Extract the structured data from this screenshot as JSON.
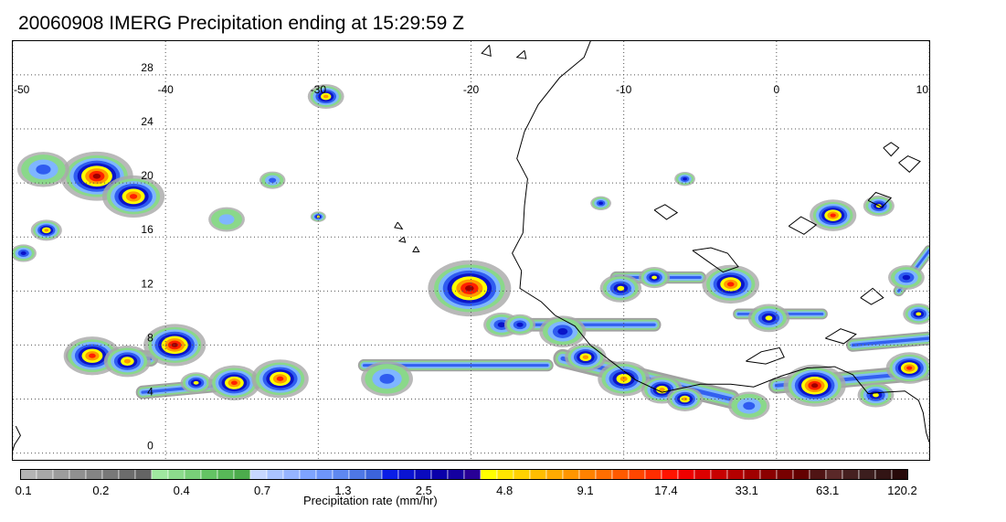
{
  "title": "20060908 IMERG Precipitation ending at 15:29:59 Z",
  "map": {
    "lon_range": [
      -50,
      10
    ],
    "lat_range": [
      -0.5,
      30.5
    ],
    "lon_ticks": [
      -50,
      -40,
      -30,
      -20,
      -10,
      0,
      10
    ],
    "lon_tick_labels": [
      "-50",
      "-40",
      "-30",
      "-20",
      "-10",
      "0",
      "10"
    ],
    "lat_ticks": [
      0,
      4,
      8,
      12,
      16,
      20,
      24,
      28
    ],
    "lat_tick_labels": [
      "0",
      "4",
      "8",
      "12",
      "16",
      "20",
      "24",
      "28"
    ],
    "gridlines": true,
    "cells": [
      {
        "lon": -44.5,
        "lat": 20.5,
        "r": 1.4,
        "level": 0.95
      },
      {
        "lon": -42.1,
        "lat": 19.0,
        "r": 1.2,
        "level": 0.85
      },
      {
        "lon": -47.8,
        "lat": 16.5,
        "r": 0.6,
        "level": 0.7
      },
      {
        "lon": -49.3,
        "lat": 14.8,
        "r": 0.5,
        "level": 0.5
      },
      {
        "lon": -48.0,
        "lat": 21.0,
        "r": 1.0,
        "level": 0.35
      },
      {
        "lon": -29.5,
        "lat": 26.4,
        "r": 0.7,
        "level": 0.75
      },
      {
        "lon": -44.8,
        "lat": 7.2,
        "r": 1.1,
        "level": 0.85
      },
      {
        "lon": -42.5,
        "lat": 6.8,
        "r": 0.9,
        "level": 0.8
      },
      {
        "lon": -39.4,
        "lat": 8.0,
        "r": 1.2,
        "level": 1.0
      },
      {
        "lon": -38.0,
        "lat": 5.2,
        "r": 0.6,
        "level": 0.6
      },
      {
        "lon": -35.5,
        "lat": 5.2,
        "r": 1.0,
        "level": 0.9
      },
      {
        "lon": -32.5,
        "lat": 5.5,
        "r": 1.1,
        "level": 0.9
      },
      {
        "lon": -20.1,
        "lat": 12.2,
        "r": 1.6,
        "level": 1.0
      },
      {
        "lon": -18.0,
        "lat": 9.5,
        "r": 0.7,
        "level": 0.55
      },
      {
        "lon": -16.8,
        "lat": 9.5,
        "r": 0.6,
        "level": 0.5
      },
      {
        "lon": -10.2,
        "lat": 12.2,
        "r": 0.8,
        "level": 0.65
      },
      {
        "lon": -8.0,
        "lat": 13.0,
        "r": 0.6,
        "level": 0.6
      },
      {
        "lon": -12.5,
        "lat": 7.1,
        "r": 0.8,
        "level": 0.7
      },
      {
        "lon": -10.0,
        "lat": 5.5,
        "r": 1.0,
        "level": 0.75
      },
      {
        "lon": -7.5,
        "lat": 4.7,
        "r": 0.8,
        "level": 0.7
      },
      {
        "lon": -6.0,
        "lat": 4.0,
        "r": 0.7,
        "level": 0.75
      },
      {
        "lon": -3.0,
        "lat": 12.5,
        "r": 1.1,
        "level": 0.85
      },
      {
        "lon": -0.5,
        "lat": 10.0,
        "r": 0.8,
        "level": 0.65
      },
      {
        "lon": 3.7,
        "lat": 17.6,
        "r": 0.9,
        "level": 0.9
      },
      {
        "lon": 6.7,
        "lat": 18.3,
        "r": 0.6,
        "level": 0.6
      },
      {
        "lon": 2.5,
        "lat": 5.0,
        "r": 1.2,
        "level": 0.95
      },
      {
        "lon": 6.5,
        "lat": 4.3,
        "r": 0.7,
        "level": 0.6
      },
      {
        "lon": 8.7,
        "lat": 6.3,
        "r": 0.9,
        "level": 0.85
      },
      {
        "lon": 9.3,
        "lat": 10.3,
        "r": 0.6,
        "level": 0.6
      },
      {
        "lon": 8.5,
        "lat": 13.0,
        "r": 0.7,
        "level": 0.55
      },
      {
        "lon": -25.5,
        "lat": 5.5,
        "r": 1.0,
        "level": 0.35
      },
      {
        "lon": -14.0,
        "lat": 9.0,
        "r": 0.9,
        "level": 0.45
      },
      {
        "lon": -1.8,
        "lat": 3.5,
        "r": 0.8,
        "level": 0.4
      },
      {
        "lon": -6.0,
        "lat": 20.3,
        "r": 0.4,
        "level": 0.55
      },
      {
        "lon": -11.5,
        "lat": 18.5,
        "r": 0.4,
        "level": 0.55
      },
      {
        "lon": -33.0,
        "lat": 20.2,
        "r": 0.5,
        "level": 0.35
      },
      {
        "lon": -36.0,
        "lat": 17.3,
        "r": 0.7,
        "level": 0.3
      },
      {
        "lon": -30.0,
        "lat": 17.5,
        "r": 0.3,
        "level": 0.6
      }
    ],
    "bands": [
      {
        "lon1": -27.0,
        "lat1": 6.5,
        "lon2": -15.0,
        "lat2": 6.5,
        "w": 0.45
      },
      {
        "lon1": -16.0,
        "lat1": 9.5,
        "lon2": -8.0,
        "lat2": 9.5,
        "w": 0.5
      },
      {
        "lon1": -14.0,
        "lat1": 7.0,
        "lon2": -3.0,
        "lat2": 4.0,
        "w": 0.7
      },
      {
        "lon1": -2.5,
        "lat1": 10.3,
        "lon2": 3.0,
        "lat2": 10.3,
        "w": 0.4
      },
      {
        "lon1": -10.5,
        "lat1": 13.0,
        "lon2": -5.0,
        "lat2": 13.0,
        "w": 0.45
      },
      {
        "lon1": 0.0,
        "lat1": 5.0,
        "lon2": 10.0,
        "lat2": 6.0,
        "w": 0.6
      },
      {
        "lon1": -46.0,
        "lat1": 7.2,
        "lon2": -41.0,
        "lat2": 7.0,
        "w": 0.6
      },
      {
        "lon1": -41.5,
        "lat1": 4.5,
        "lon2": -32.0,
        "lat2": 5.5,
        "w": 0.5
      },
      {
        "lon1": 5.0,
        "lat1": 8.0,
        "lon2": 10.0,
        "lat2": 8.5,
        "w": 0.5
      },
      {
        "lon1": 8.0,
        "lat1": 12.0,
        "lon2": 10.0,
        "lat2": 15.0,
        "w": 0.4
      }
    ]
  },
  "colorbar": {
    "colors": [
      "#b4b4b4",
      "#a8a8a8",
      "#9c9c9c",
      "#909090",
      "#848484",
      "#787878",
      "#6c6c6c",
      "#646464",
      "#a0e8a0",
      "#8cdc8c",
      "#78d078",
      "#64c464",
      "#58b858",
      "#4cac4c",
      "#c8d8ff",
      "#aac4ff",
      "#96b4ff",
      "#7ea4ff",
      "#6e96fa",
      "#5e88f0",
      "#4e78e6",
      "#3c64dc",
      "#0a1ee6",
      "#0a14d2",
      "#0a0abe",
      "#0a00aa",
      "#1400a0",
      "#280096",
      "#ffff00",
      "#ffe600",
      "#ffd200",
      "#ffbe00",
      "#ffaa00",
      "#ff9600",
      "#ff8200",
      "#ff6e00",
      "#ff5a00",
      "#ff4600",
      "#ff2d00",
      "#ff1400",
      "#f00000",
      "#dc0000",
      "#c80000",
      "#b40000",
      "#a00000",
      "#8c0000",
      "#780000",
      "#640000",
      "#501414",
      "#5a2828",
      "#462020",
      "#3c1e1e",
      "#321414",
      "#280a0a"
    ],
    "tick_labels": [
      "0.1",
      "0.2",
      "0.4",
      "0.7",
      "1.3",
      "2.5",
      "4.8",
      "9.1",
      "17.4",
      "33.1",
      "63.1",
      "120.2"
    ],
    "label": "Precipitation rate (mm/hr)"
  }
}
